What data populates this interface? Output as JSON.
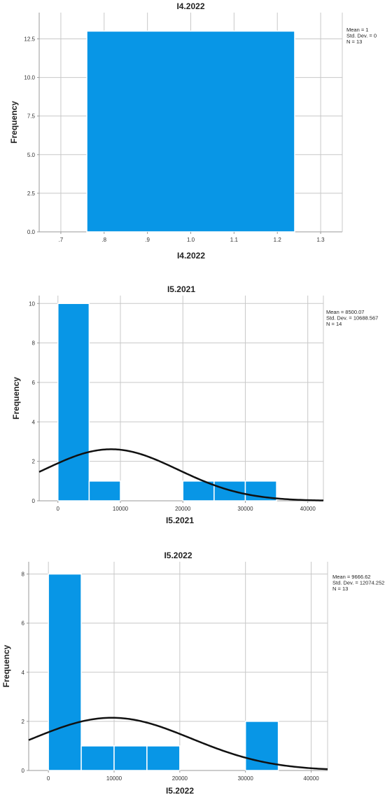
{
  "chart_data": [
    {
      "type": "bar",
      "title": "I4.2022",
      "xlabel": "I4.2022",
      "ylabel": "Frequency",
      "xlim": [
        0.65,
        1.35
      ],
      "ylim": [
        0,
        14.2
      ],
      "xticks": [
        0.7,
        0.8,
        0.9,
        1.0,
        1.1,
        1.2,
        1.3
      ],
      "xtick_labels": [
        ".7",
        ".8",
        ".9",
        "1.0",
        "1.1",
        "1.2",
        "1.3"
      ],
      "yticks": [
        0,
        2.5,
        5,
        7.5,
        10,
        12.5
      ],
      "ytick_labels": [
        "0.0",
        "2.5",
        "5.0",
        "7.5",
        "10.0",
        "12.5"
      ],
      "bins": [
        {
          "x0": 0.76,
          "x1": 1.24,
          "count": 13
        }
      ],
      "normal_curve": false,
      "stats": [
        "Mean = 1",
        "Std. Dev. = 0",
        "N = 13"
      ],
      "grid": true
    },
    {
      "type": "bar",
      "title": "I5.2021",
      "xlabel": "I5.2021",
      "ylabel": "Frequency",
      "xlim": [
        -3000,
        42500
      ],
      "ylim": [
        0,
        10.4
      ],
      "xticks": [
        0,
        10000,
        20000,
        30000,
        40000
      ],
      "xtick_labels": [
        "0",
        "10000",
        "20000",
        "30000",
        "40000"
      ],
      "yticks": [
        0,
        2,
        4,
        6,
        8,
        10
      ],
      "ytick_labels": [
        "0",
        "2",
        "4",
        "6",
        "8",
        "10"
      ],
      "bins": [
        {
          "x0": 0,
          "x1": 5000,
          "count": 10
        },
        {
          "x0": 5000,
          "x1": 10000,
          "count": 1
        },
        {
          "x0": 20000,
          "x1": 25000,
          "count": 1
        },
        {
          "x0": 25000,
          "x1": 30000,
          "count": 1
        },
        {
          "x0": 30000,
          "x1": 35000,
          "count": 1
        }
      ],
      "normal_curve": true,
      "mean": 8500.07,
      "sd": 10688.567,
      "n": 14,
      "bin_width": 5000,
      "stats": [
        "Mean = 8500.07",
        "Std. Dev. = 10688.567",
        "N = 14"
      ],
      "grid": true
    },
    {
      "type": "bar",
      "title": "I5.2022",
      "xlabel": "I5.2022",
      "ylabel": "Frequency",
      "xlim": [
        -3000,
        42500
      ],
      "ylim": [
        0,
        8.5
      ],
      "xticks": [
        0,
        10000,
        20000,
        30000,
        40000
      ],
      "xtick_labels": [
        "0",
        "10000",
        "20000",
        "30000",
        "40000"
      ],
      "yticks": [
        0,
        2,
        4,
        6,
        8
      ],
      "ytick_labels": [
        "0",
        "2",
        "4",
        "6",
        "8"
      ],
      "bins": [
        {
          "x0": 0,
          "x1": 5000,
          "count": 8
        },
        {
          "x0": 5000,
          "x1": 10000,
          "count": 1
        },
        {
          "x0": 10000,
          "x1": 15000,
          "count": 1
        },
        {
          "x0": 15000,
          "x1": 20000,
          "count": 1
        },
        {
          "x0": 30000,
          "x1": 35000,
          "count": 2
        }
      ],
      "normal_curve": true,
      "mean": 9666.62,
      "sd": 12074.252,
      "n": 13,
      "bin_width": 5000,
      "stats": [
        "Mean = 9666.62",
        "Std. Dev. = 12074.252",
        "N = 13"
      ],
      "grid": true
    }
  ],
  "colors": {
    "bar": "#0896E6",
    "grid": "#c8c8c8",
    "axis": "#9a9a9a",
    "curve": "#111111"
  }
}
